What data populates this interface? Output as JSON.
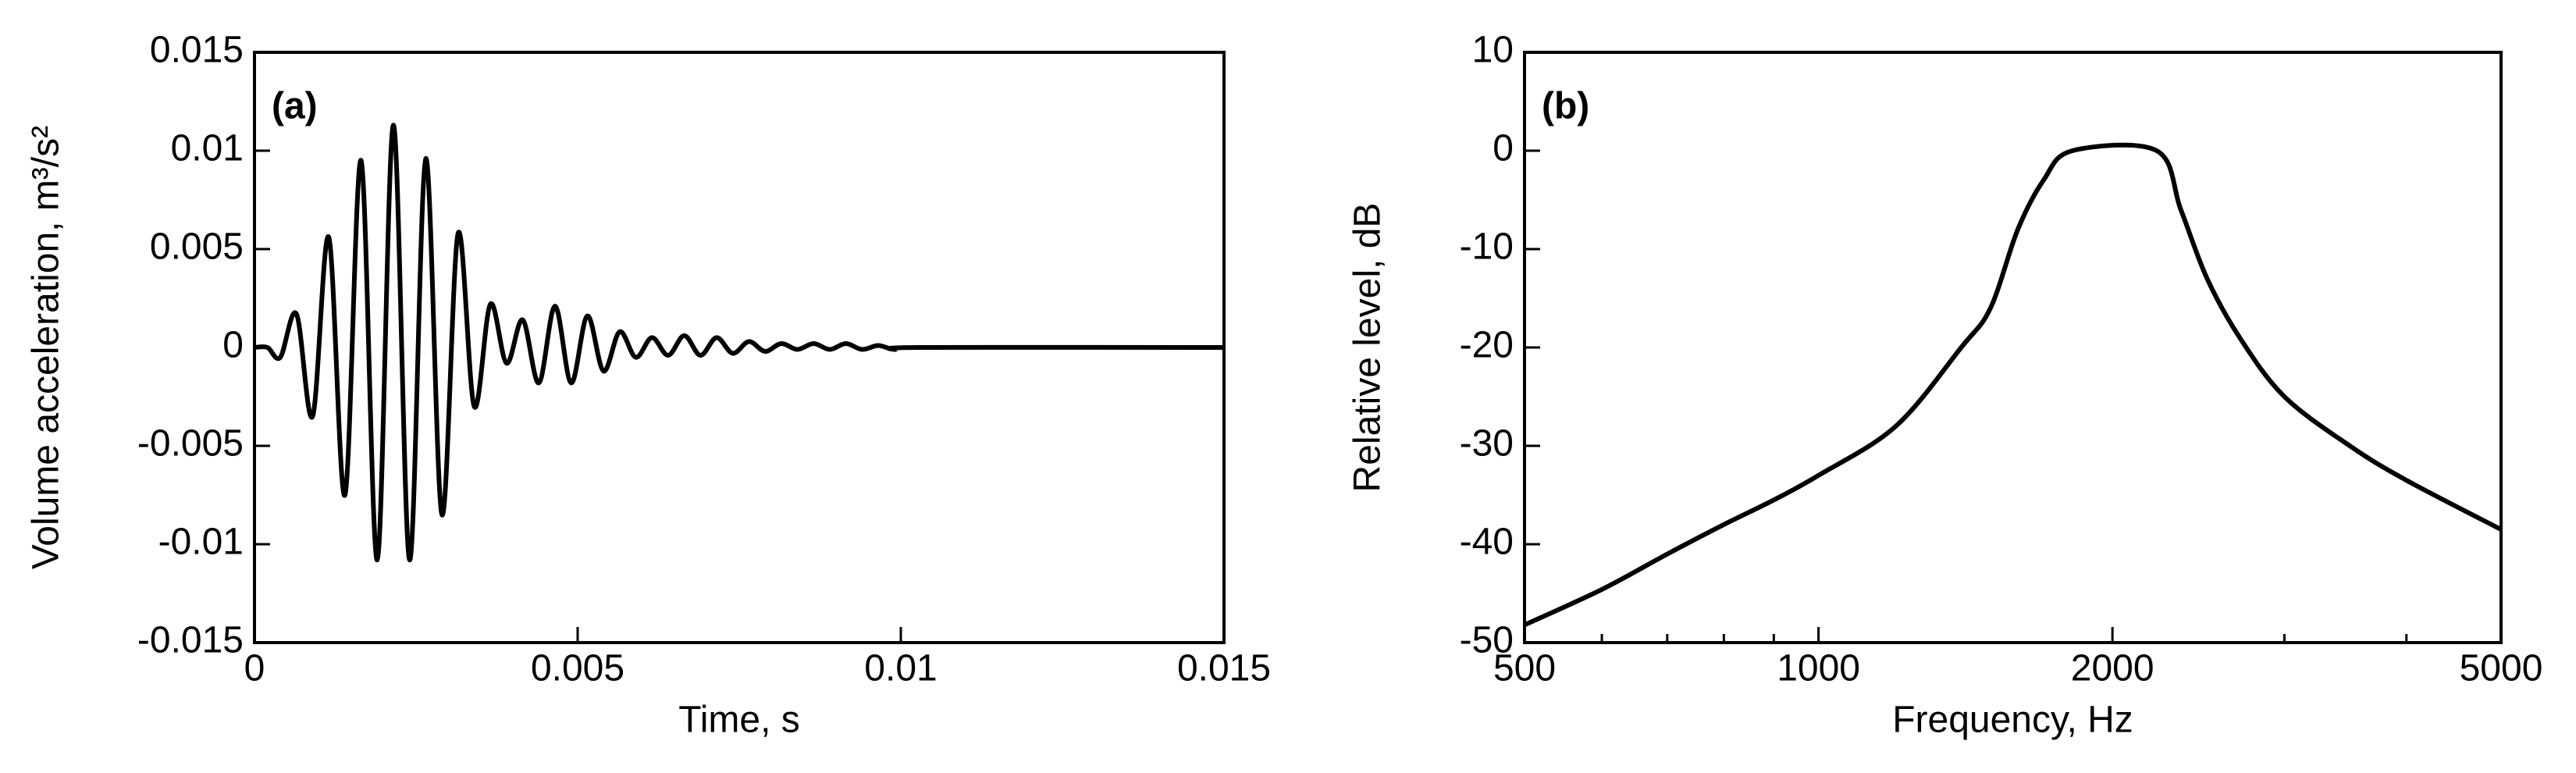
{
  "chart_data": [
    {
      "type": "line",
      "panel_label": "(a)",
      "xlabel": "Time, s",
      "ylabel": "Volume acceleration, m³/s²",
      "xlim": [
        0,
        0.015
      ],
      "xticks": [
        0,
        0.005,
        0.01,
        0.015
      ],
      "ylim": [
        -0.015,
        0.015
      ],
      "yticks": [
        -0.015,
        -0.01,
        -0.005,
        0,
        0.005,
        0.01,
        0.015
      ],
      "xscale": "linear",
      "x": [
        0,
        0.0002,
        0.0004,
        0.00065,
        0.0009,
        0.00115,
        0.0014,
        0.00165,
        0.0019,
        0.00215,
        0.0024,
        0.00265,
        0.0029,
        0.00315,
        0.0034,
        0.00365,
        0.0039,
        0.00415,
        0.0044,
        0.00465,
        0.0049,
        0.00515,
        0.0054,
        0.00565,
        0.0059,
        0.00615,
        0.0064,
        0.00665,
        0.0069,
        0.00715,
        0.0074,
        0.00765,
        0.0079,
        0.00815,
        0.0084,
        0.00865,
        0.0089,
        0.00915,
        0.0094,
        0.00965,
        0.0099,
        0.0103,
        0.015
      ],
      "series": [
        {
          "color": "#000000",
          "values": [
            0,
            0,
            -0.0005,
            0.0017,
            -0.0035,
            0.0056,
            -0.0075,
            0.0095,
            -0.0108,
            0.0113,
            -0.0108,
            0.0096,
            -0.0085,
            0.0058,
            -0.003,
            0.0022,
            -0.0008,
            0.0014,
            -0.0018,
            0.0021,
            -0.0018,
            0.0016,
            -0.0012,
            0.0008,
            -0.0005,
            0.0005,
            -0.0004,
            0.0006,
            -0.0004,
            0.0005,
            -0.0003,
            0.0003,
            -0.0002,
            0.0002,
            -0.0001,
            0.0002,
            -0.0001,
            0.0002,
            -0.0001,
            0.0001,
            -0.0001,
            0,
            0
          ]
        }
      ]
    },
    {
      "type": "line",
      "panel_label": "(b)",
      "xlabel": "Frequency, Hz",
      "ylabel": "Relative level, dB",
      "xlim": [
        500,
        5000
      ],
      "xticks": [
        500,
        1000,
        2000,
        5000
      ],
      "xminorticks": [
        600,
        700,
        800,
        900,
        3000,
        4000
      ],
      "ylim": [
        -50,
        10
      ],
      "yticks": [
        -50,
        -40,
        -30,
        -20,
        -10,
        0,
        10
      ],
      "xscale": "log",
      "x": [
        500,
        600,
        700,
        800,
        900,
        1000,
        1200,
        1400,
        1500,
        1600,
        1700,
        1820,
        2220,
        2350,
        2500,
        2700,
        3000,
        3500,
        4000,
        5000
      ],
      "series": [
        {
          "color": "#000000",
          "values": [
            -48.2,
            -44.6,
            -41,
            -38,
            -35.5,
            -33,
            -28,
            -20,
            -16,
            -8,
            -3,
            0,
            0,
            -6,
            -13,
            -19,
            -25,
            -30,
            -33.5,
            -38.5
          ]
        }
      ]
    }
  ]
}
